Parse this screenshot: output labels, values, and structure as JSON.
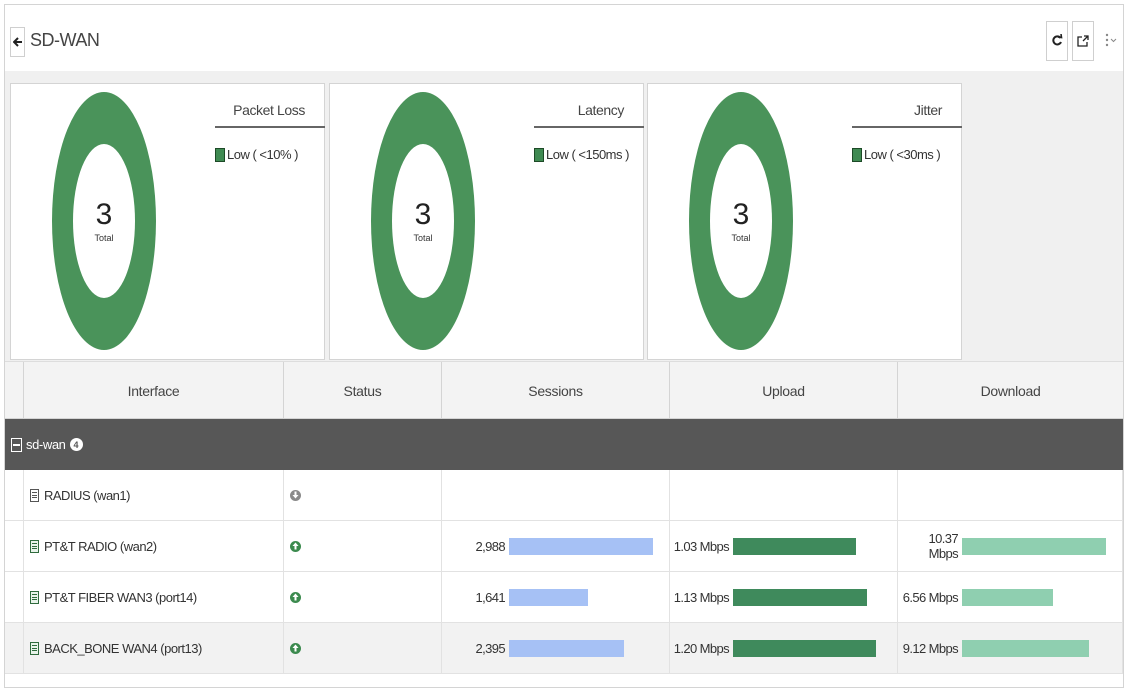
{
  "header": {
    "title": "SD-WAN",
    "icons": [
      "back-arrow-icon",
      "refresh-icon",
      "external-link-icon",
      "more-options-icon"
    ]
  },
  "widgets": [
    {
      "title": "Packet Loss",
      "total": "3",
      "total_label": "Total",
      "legend": "Low ( <10% )",
      "color": "#4a935a"
    },
    {
      "title": "Latency",
      "total": "3",
      "total_label": "Total",
      "legend": "Low ( <150ms )",
      "color": "#4a935a"
    },
    {
      "title": "Jitter",
      "total": "3",
      "total_label": "Total",
      "legend": "Low ( <30ms )",
      "color": "#4a935a"
    }
  ],
  "table": {
    "columns": [
      "Interface",
      "Status",
      "Sessions",
      "Upload",
      "Download"
    ],
    "group": {
      "label": "sd-wan",
      "count": "4"
    },
    "rows": [
      {
        "interface": "RADIUS (wan1)",
        "status": "down",
        "sessions": "",
        "sessions_frac": 0,
        "upload": "",
        "upload_frac": 0,
        "download": "",
        "download_frac": 0
      },
      {
        "interface": "PT&T RADIO (wan2)",
        "status": "up",
        "sessions": "2,988",
        "sessions_frac": 1.0,
        "upload": "1.03 Mbps",
        "upload_frac": 0.86,
        "download": "10.37 Mbps",
        "download_frac": 1.0
      },
      {
        "interface": "PT&T FIBER WAN3 (port14)",
        "status": "up",
        "sessions": "1,641",
        "sessions_frac": 0.55,
        "upload": "1.13 Mbps",
        "upload_frac": 0.94,
        "download": "6.56 Mbps",
        "download_frac": 0.63
      },
      {
        "interface": "BACK_BONE WAN4 (port13)",
        "status": "up",
        "sessions": "2,395",
        "sessions_frac": 0.8,
        "upload": "1.20 Mbps",
        "upload_frac": 1.0,
        "download": "9.12 Mbps",
        "download_frac": 0.88
      }
    ],
    "colors": {
      "sessions": "#a6c1f5",
      "upload": "#3f8a5c",
      "download": "#8fcfb0",
      "group_bg": "#575757"
    }
  }
}
